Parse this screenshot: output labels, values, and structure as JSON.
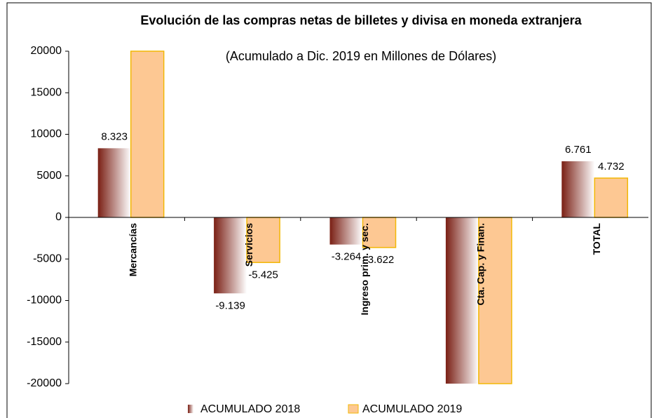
{
  "chart_data": {
    "type": "bar",
    "title": "Evolución de las compras netas de billetes y divisa en moneda extranjera",
    "subtitle": "(Acumulado a Dic. 2019 en Millones de Dólares)",
    "categories": [
      "Mercancías",
      "Servicios",
      "Ingreso prim. y sec.",
      "Cta. Cap. y Finan.",
      "TOTAL"
    ],
    "series": [
      {
        "name": "ACUMULADO 2018",
        "color": "#8b2a1e",
        "values": [
          8323,
          -9139,
          -3264,
          -20000,
          6761
        ],
        "value_labels": [
          "8.323",
          "-9.139",
          "-3.264",
          null,
          "6.761"
        ]
      },
      {
        "name": "ACUMULADO 2019",
        "color": "#fdc893",
        "values": [
          20000,
          -5425,
          -3622,
          -20000,
          4732
        ],
        "value_labels": [
          null,
          "-5.425",
          "-3.622",
          null,
          "4.732"
        ]
      }
    ],
    "ylim": [
      -20000,
      20000
    ],
    "yticks": [
      20000,
      15000,
      10000,
      5000,
      0,
      -5000,
      -10000,
      -15000,
      -20000
    ],
    "grid": false
  }
}
